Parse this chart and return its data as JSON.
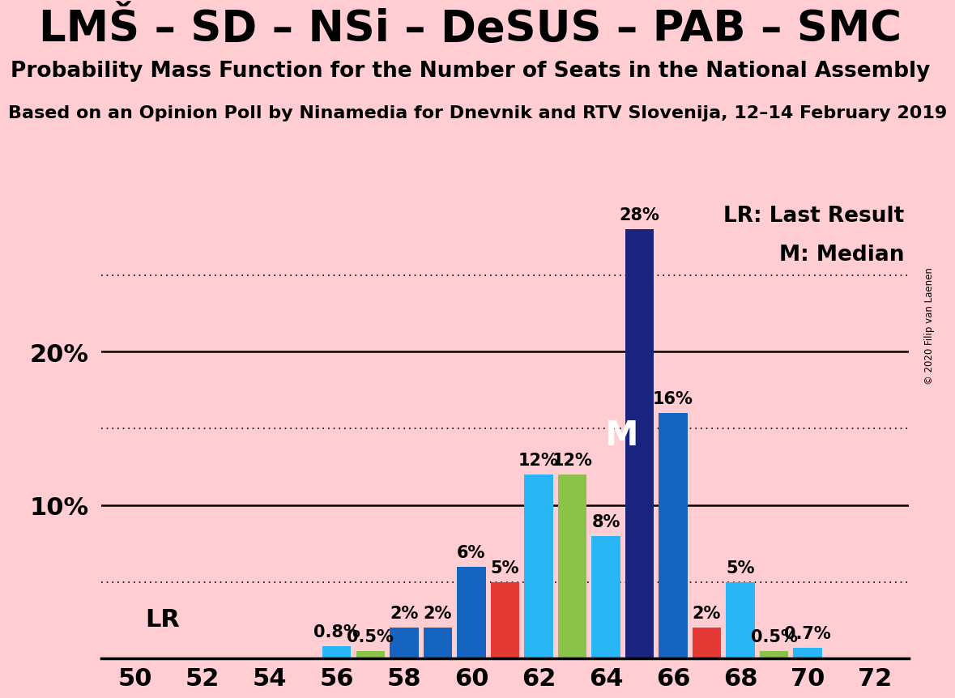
{
  "title": "LMŠ – SD – NSi – DeSUS – PAB – SMC",
  "subtitle": "Probability Mass Function for the Number of Seats in the National Assembly",
  "source": "Based on an Opinion Poll by Ninamedia for Dnevnik and RTV Slovenija, 12–14 February 2019",
  "copyright": "© 2020 Filip van Laenen",
  "legend_lr": "LR: Last Result",
  "legend_m": "M: Median",
  "lr_label": "LR",
  "m_label": "M",
  "background_color": "#FFCDD2",
  "seats": [
    50,
    51,
    52,
    53,
    54,
    55,
    56,
    57,
    58,
    59,
    60,
    61,
    62,
    63,
    64,
    65,
    66,
    67,
    68,
    69,
    70,
    71,
    72
  ],
  "values": [
    0.0,
    0.0,
    0.0,
    0.0,
    0.0,
    0.0,
    0.8,
    0.5,
    2.0,
    2.0,
    6.0,
    5.0,
    12.0,
    12.0,
    8.0,
    28.0,
    16.0,
    2.0,
    5.0,
    0.5,
    0.7,
    0.0,
    0.0
  ],
  "bar_color_list": [
    "#1a237e",
    "#1a237e",
    "#1a237e",
    "#1a237e",
    "#1a237e",
    "#1a237e",
    "#29b6f6",
    "#8bc34a",
    "#1565c0",
    "#1565c0",
    "#1565c0",
    "#e53935",
    "#29b6f6",
    "#8bc34a",
    "#29b6f6",
    "#1a237e",
    "#1565c0",
    "#e53935",
    "#29b6f6",
    "#8bc34a",
    "#29b6f6",
    "#1a237e",
    "#1a237e"
  ],
  "label_seats": [
    50,
    52,
    54,
    56,
    58,
    60,
    62,
    64,
    66,
    68,
    70,
    72
  ],
  "ylim": [
    0,
    30
  ],
  "grid_lines_dotted": [
    5,
    15,
    25
  ],
  "grid_lines_solid": [
    10,
    20
  ],
  "median_seat": 65,
  "lr_seat": 56,
  "title_fontsize": 38,
  "subtitle_fontsize": 19,
  "source_fontsize": 16,
  "axis_tick_fontsize": 22,
  "bar_label_fontsize": 15,
  "legend_fontsize": 19,
  "ytick_values": [
    10,
    20
  ],
  "ytick_labels": [
    "10%",
    "20%"
  ]
}
